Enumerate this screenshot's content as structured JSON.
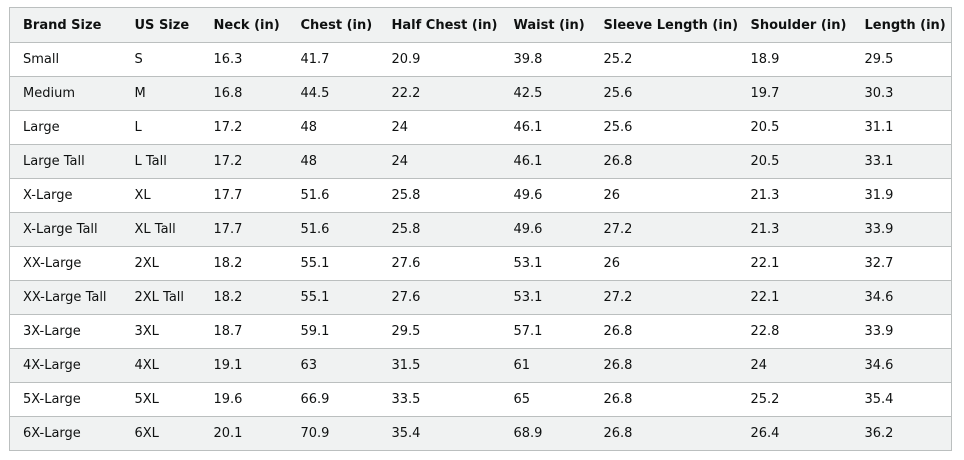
{
  "headers": [
    "Brand Size",
    "US Size",
    "Neck (in)",
    "Chest (in)",
    "Half Chest (in)",
    "Waist (in)",
    "Sleeve Length (in)",
    "Shoulder (in)",
    "Length (in)"
  ],
  "rows": [
    [
      "Small",
      "S",
      "16.3",
      "41.7",
      "20.9",
      "39.8",
      "25.2",
      "18.9",
      "29.5"
    ],
    [
      "Medium",
      "M",
      "16.8",
      "44.5",
      "22.2",
      "42.5",
      "25.6",
      "19.7",
      "30.3"
    ],
    [
      "Large",
      "L",
      "17.2",
      "48",
      "24",
      "46.1",
      "25.6",
      "20.5",
      "31.1"
    ],
    [
      "Large Tall",
      "L Tall",
      "17.2",
      "48",
      "24",
      "46.1",
      "26.8",
      "20.5",
      "33.1"
    ],
    [
      "X-Large",
      "XL",
      "17.7",
      "51.6",
      "25.8",
      "49.6",
      "26",
      "21.3",
      "31.9"
    ],
    [
      "X-Large Tall",
      "XL Tall",
      "17.7",
      "51.6",
      "25.8",
      "49.6",
      "27.2",
      "21.3",
      "33.9"
    ],
    [
      "XX-Large",
      "2XL",
      "18.2",
      "55.1",
      "27.6",
      "53.1",
      "26",
      "22.1",
      "32.7"
    ],
    [
      "XX-Large Tall",
      "2XL Tall",
      "18.2",
      "55.1",
      "27.6",
      "53.1",
      "27.2",
      "22.1",
      "34.6"
    ],
    [
      "3X-Large",
      "3XL",
      "18.7",
      "59.1",
      "29.5",
      "57.1",
      "26.8",
      "22.8",
      "33.9"
    ],
    [
      "4X-Large",
      "4XL",
      "19.1",
      "63",
      "31.5",
      "61",
      "26.8",
      "24",
      "34.6"
    ],
    [
      "5X-Large",
      "5XL",
      "19.6",
      "66.9",
      "33.5",
      "65",
      "26.8",
      "25.2",
      "35.4"
    ],
    [
      "6X-Large",
      "6XL",
      "20.1",
      "70.9",
      "35.4",
      "68.9",
      "26.8",
      "26.4",
      "36.2"
    ]
  ],
  "colors": {
    "border": "#bbbfbf",
    "header_bg": "#f0f2f2",
    "stripe_bg": "#f0f2f2",
    "text": "#0f1111"
  }
}
